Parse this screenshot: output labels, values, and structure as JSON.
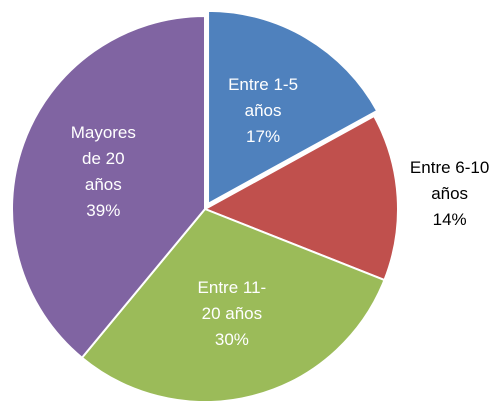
{
  "chart_data": {
    "type": "pie",
    "categories": [
      "Entre 1-5 años",
      "Entre 6-10 años",
      "Entre 11-20 años",
      "Mayores de 20 años"
    ],
    "values": [
      17,
      14,
      30,
      39
    ],
    "value_labels": [
      "17%",
      "14%",
      "30%",
      "39%"
    ],
    "colors": [
      "#4f81bd",
      "#c0504d",
      "#9bbb59",
      "#8064a2"
    ]
  }
}
